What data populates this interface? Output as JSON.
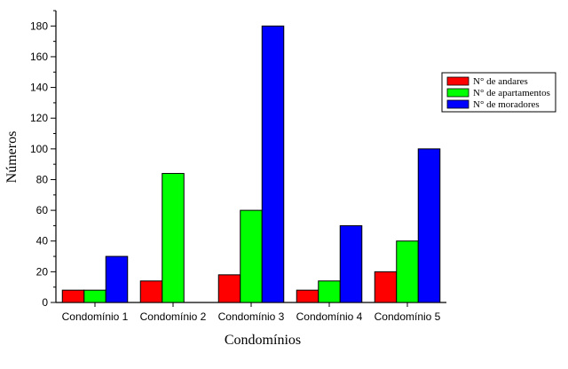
{
  "chart_data": {
    "type": "bar",
    "title": "",
    "xlabel": "Condomínios",
    "ylabel": "Números",
    "categories": [
      "Condomínio 1",
      "Condomínio 2",
      "Condomínio 3",
      "Condomínio 4",
      "Condomínio 5"
    ],
    "series": [
      {
        "name": "N° de andares",
        "color": "#ff0000",
        "values": [
          8,
          14,
          18,
          8,
          20
        ]
      },
      {
        "name": "N° de apartamentos",
        "color": "#00ff00",
        "values": [
          8,
          84,
          60,
          14,
          40
        ]
      },
      {
        "name": "N° de moradores",
        "color": "#0000ff",
        "values": [
          30,
          0,
          180,
          50,
          100
        ]
      }
    ],
    "ylim": [
      0,
      190
    ],
    "yticks": [
      0,
      20,
      40,
      60,
      80,
      100,
      120,
      140,
      160,
      180
    ],
    "grid": false,
    "legend_position": "top-right"
  }
}
